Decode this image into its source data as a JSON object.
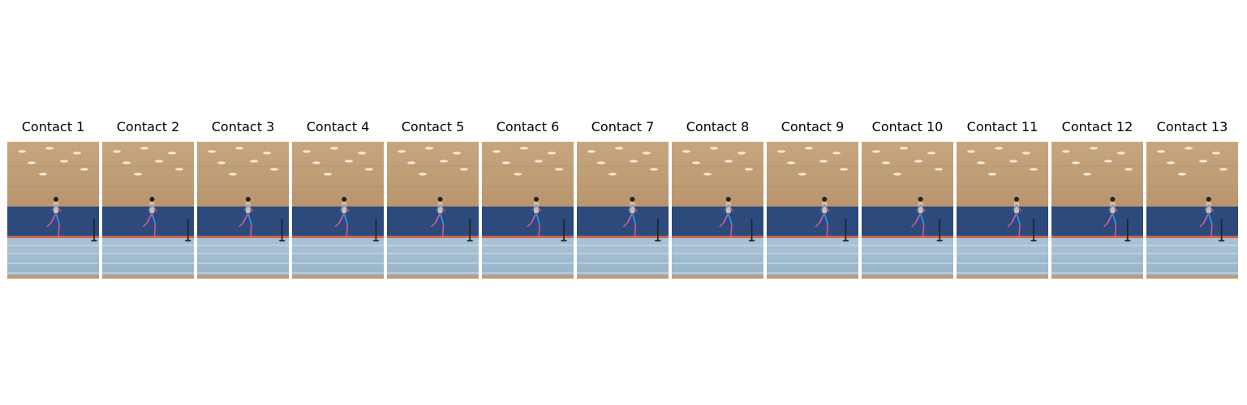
{
  "figure": {
    "panels": [
      {
        "title": "Contact 1"
      },
      {
        "title": "Contact 2"
      },
      {
        "title": "Contact 3"
      },
      {
        "title": "Contact 4"
      },
      {
        "title": "Contact 5"
      },
      {
        "title": "Contact 6"
      },
      {
        "title": "Contact 7"
      },
      {
        "title": "Contact 8"
      },
      {
        "title": "Contact 9"
      },
      {
        "title": "Contact 10"
      },
      {
        "title": "Contact 11"
      },
      {
        "title": "Contact 12"
      },
      {
        "title": "Contact 13"
      }
    ]
  }
}
